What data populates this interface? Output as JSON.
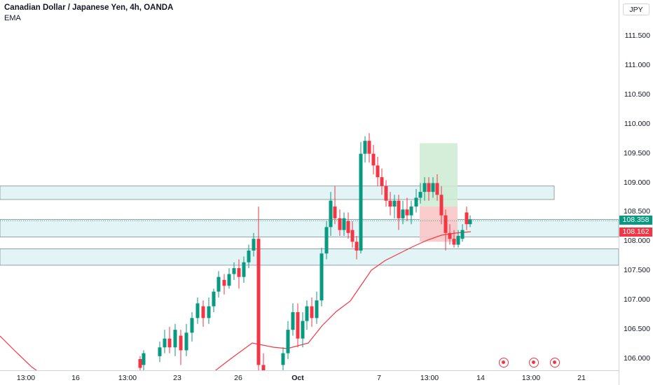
{
  "header": {
    "title": "Canadian Dollar / Japanese Yen, 4h, OANDA",
    "indicator": "EMA"
  },
  "price_axis": {
    "currency": "JPY",
    "labels": [
      "111.500",
      "111.000",
      "110.500",
      "110.000",
      "109.500",
      "109.000",
      "108.500",
      "108.000",
      "107.500",
      "107.000",
      "106.500",
      "106.000"
    ],
    "last_price": "108.358",
    "ema_value": "108.162"
  },
  "time_axis": {
    "labels": [
      "13:00",
      "16",
      "13:00",
      "23",
      "26",
      "Oct",
      "7",
      "13:00",
      "14",
      "13:00",
      "21"
    ]
  },
  "colors": {
    "up": "#089981",
    "down": "#f23645",
    "ema": "#f23645",
    "zone_fill": "#e3f4f7",
    "target_zone": "#cdebd2",
    "stop_zone": "#f9c6c6"
  },
  "events": {
    "icons": [
      "calendar-event-icon",
      "news-event-icon",
      "news-event-icon"
    ]
  }
}
